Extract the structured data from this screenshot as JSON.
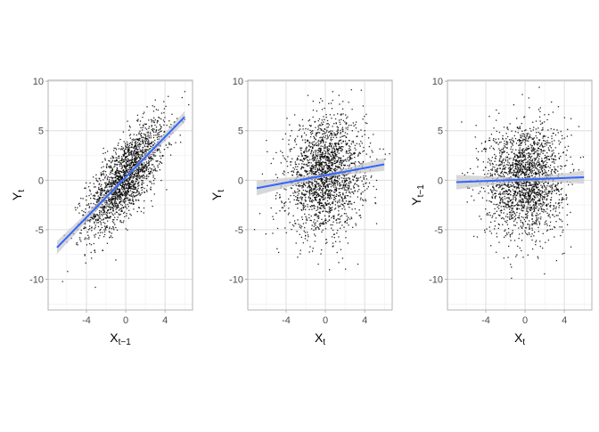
{
  "chart_data": [
    {
      "type": "scatter",
      "xlabel": {
        "main": "X",
        "sub": "t−1"
      },
      "ylabel": {
        "main": "Y",
        "sub": "t"
      },
      "xlim": [
        -7.9,
        6.8
      ],
      "ylim": [
        -13.1,
        10.1
      ],
      "xticks": [
        -4,
        0,
        4
      ],
      "yticks": [
        -10,
        -5,
        0,
        5,
        10
      ],
      "grid": true,
      "fit_line": {
        "x": [
          -7,
          6
        ],
        "y": [
          -6.8,
          6.4
        ],
        "color": "#3366FF",
        "band_color": "#C8C8C8"
      },
      "point_color": "#000000"
    },
    {
      "type": "scatter",
      "xlabel": {
        "main": "X",
        "sub": "t"
      },
      "ylabel": {
        "main": "Y",
        "sub": "t"
      },
      "xlim": [
        -7.9,
        6.8
      ],
      "ylim": [
        -13.1,
        10.1
      ],
      "xticks": [
        -4,
        0,
        4
      ],
      "yticks": [
        -10,
        -5,
        0,
        5,
        10
      ],
      "grid": true,
      "fit_line": {
        "x": [
          -7,
          6
        ],
        "y": [
          -0.8,
          1.6
        ],
        "color": "#3366FF",
        "band_color": "#C8C8C8"
      },
      "point_color": "#000000"
    },
    {
      "type": "scatter",
      "xlabel": {
        "main": "X",
        "sub": "t"
      },
      "ylabel": {
        "main": "Y",
        "sub": "t−1"
      },
      "xlim": [
        -7.9,
        6.8
      ],
      "ylim": [
        -13.1,
        10.1
      ],
      "xticks": [
        -4,
        0,
        4
      ],
      "yticks": [
        -10,
        -5,
        0,
        5,
        10
      ],
      "grid": true,
      "fit_line": {
        "x": [
          -7,
          6
        ],
        "y": [
          -0.2,
          0.3
        ],
        "color": "#3366FF",
        "band_color": "#C8C8C8"
      },
      "point_color": "#000000"
    }
  ]
}
